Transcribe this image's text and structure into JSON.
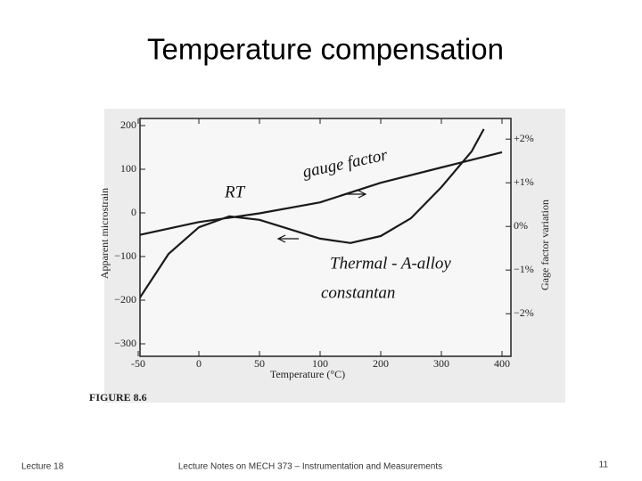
{
  "slide": {
    "title": "Temperature compensation",
    "footer_left": "Lecture 18",
    "footer_center": "Lecture Notes on MECH 373 – Instrumentation and Measurements",
    "footer_right": "11"
  },
  "chart_data": {
    "type": "line",
    "figure_label": "FIGURE 8.6",
    "xlabel": "Temperature (°C)",
    "ylabel": "Apparent microstrain",
    "y2label": "Gage factor variation",
    "annotations": [
      "gauge factor",
      "RT",
      "Thermal - A-alloy",
      "constantan"
    ],
    "xticks": [
      -50,
      0,
      50,
      100,
      200,
      300,
      400
    ],
    "ylim": [
      -300,
      200
    ],
    "yticks": [
      {
        "value": 200,
        "label": "200"
      },
      {
        "value": 100,
        "label": "100"
      },
      {
        "value": 0,
        "label": "0"
      },
      {
        "value": -100,
        "label": "−100"
      },
      {
        "value": -200,
        "label": "−200"
      },
      {
        "value": -300,
        "label": "−300"
      }
    ],
    "y2lim": [
      -2.69,
      2.31
    ],
    "y2ticks": [
      {
        "value": 2,
        "label": "+2%"
      },
      {
        "value": 1,
        "label": "+1%"
      },
      {
        "value": 0,
        "label": "0%"
      },
      {
        "value": -1,
        "label": "−1%"
      },
      {
        "value": -2,
        "label": "−2%"
      }
    ],
    "series": [
      {
        "name": "Thermal - A-alloy constantan",
        "color": "#1a1a1a",
        "x": [
          -50,
          -25,
          0,
          25,
          50,
          100,
          150,
          200,
          250,
          300,
          350,
          370
        ],
        "values": [
          -200,
          -94,
          -33,
          -8,
          -16,
          -59,
          -69,
          -53,
          -12,
          59,
          141,
          192
        ]
      },
      {
        "name": "Gauge factor",
        "color": "#1a1a1a",
        "axis": "y2",
        "x": [
          -50,
          0,
          50,
          100,
          200,
          300,
          400
        ],
        "values": [
          -0.2,
          0.1,
          0.3,
          0.55,
          1.0,
          1.35,
          1.7
        ]
      }
    ]
  }
}
